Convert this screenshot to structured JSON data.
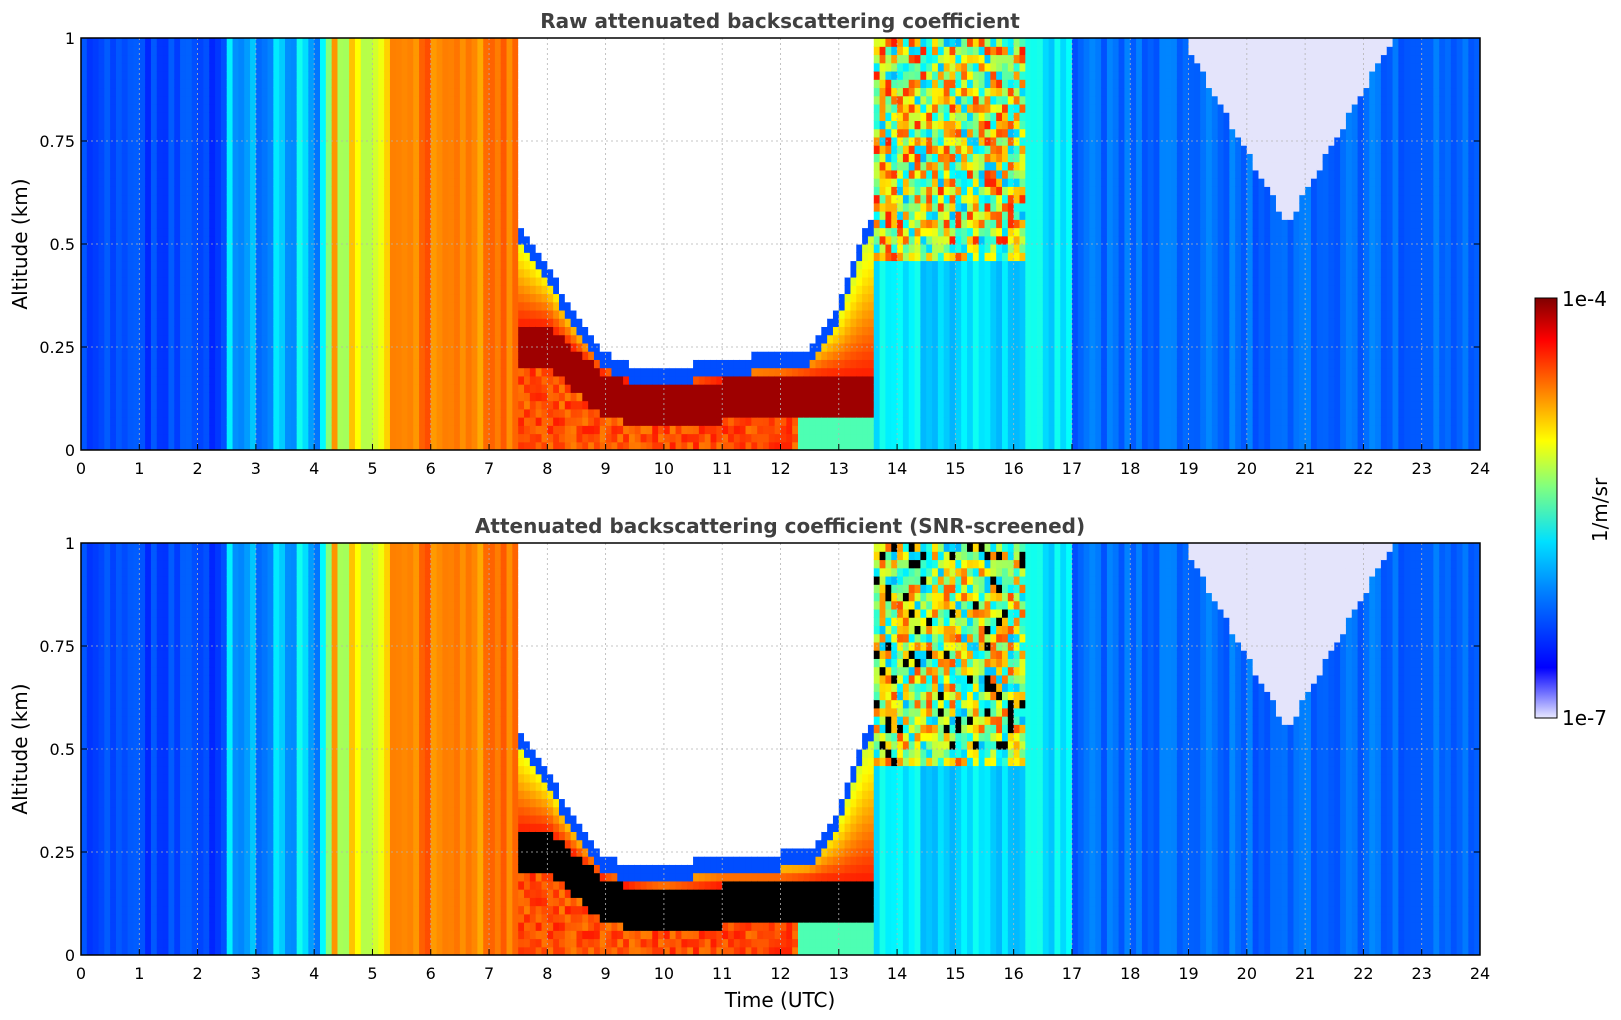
{
  "chart_data": [
    {
      "type": "heatmap",
      "title": "Raw attenuated backscattering coefficient",
      "xlabel": "",
      "ylabel": "Altitude (km)",
      "xlim": [
        0,
        24
      ],
      "ylim": [
        0,
        1
      ],
      "xticks": [
        "0",
        "1",
        "2",
        "3",
        "4",
        "5",
        "6",
        "7",
        "8",
        "9",
        "10",
        "11",
        "12",
        "13",
        "14",
        "15",
        "16",
        "17",
        "18",
        "19",
        "20",
        "21",
        "22",
        "23",
        "24"
      ],
      "yticks": [
        "0",
        "0.25",
        "0.5",
        "0.75",
        "1"
      ],
      "grid": true,
      "colorscale": {
        "min": "1e-7",
        "max": "1e-4",
        "scale": "log",
        "cmap": "jet"
      },
      "features": {
        "fog_top_km": [
          [
            7.5,
            0.55
          ],
          [
            8,
            0.45
          ],
          [
            8.5,
            0.32
          ],
          [
            9,
            0.24
          ],
          [
            9.5,
            0.2
          ],
          [
            10,
            0.2
          ],
          [
            11,
            0.22
          ],
          [
            12,
            0.24
          ],
          [
            12.5,
            0.25
          ],
          [
            13,
            0.35
          ],
          [
            13.5,
            0.55
          ]
        ],
        "dense_core_km": [
          [
            8,
            0.3
          ],
          [
            9,
            0.18
          ],
          [
            10,
            0.15
          ],
          [
            11,
            0.17
          ],
          [
            12,
            0.17
          ],
          [
            12.5,
            0.18
          ]
        ],
        "low_signal_region": {
          "x": [
            19,
            22.5
          ],
          "y_top": 1,
          "y_bottom_min": 0.55
        }
      }
    },
    {
      "type": "heatmap",
      "title": "Attenuated backscattering coefficient (SNR-screened)",
      "xlabel": "Time (UTC)",
      "ylabel": "Altitude (km)",
      "xlim": [
        0,
        24
      ],
      "ylim": [
        0,
        1
      ],
      "xticks": [
        "0",
        "1",
        "2",
        "3",
        "4",
        "5",
        "6",
        "7",
        "8",
        "9",
        "10",
        "11",
        "12",
        "13",
        "14",
        "15",
        "16",
        "17",
        "18",
        "19",
        "20",
        "21",
        "22",
        "23",
        "24"
      ],
      "yticks": [
        "0",
        "0.25",
        "0.5",
        "0.75",
        "1"
      ],
      "grid": true,
      "colorscale": {
        "min": "1e-7",
        "max": "1e-4",
        "scale": "log",
        "cmap": "jet"
      },
      "features": {
        "fog_top_km": [
          [
            7.5,
            0.55
          ],
          [
            8,
            0.45
          ],
          [
            8.5,
            0.32
          ],
          [
            9,
            0.24
          ],
          [
            9.5,
            0.22
          ],
          [
            10,
            0.22
          ],
          [
            11,
            0.24
          ],
          [
            12,
            0.25
          ],
          [
            12.5,
            0.25
          ],
          [
            13,
            0.35
          ],
          [
            13.5,
            0.55
          ]
        ],
        "screened_core_km": [
          [
            8,
            0.3
          ],
          [
            9,
            0.18
          ],
          [
            10,
            0.15
          ],
          [
            11,
            0.17
          ],
          [
            12,
            0.17
          ],
          [
            12.5,
            0.18
          ]
        ],
        "low_signal_region": {
          "x": [
            19,
            22.5
          ],
          "y_top": 1,
          "y_bottom_min": 0.55
        }
      }
    }
  ],
  "colorbar": {
    "max_label": "1e-4",
    "min_label": "1e-7",
    "unit": "1/m/sr"
  }
}
